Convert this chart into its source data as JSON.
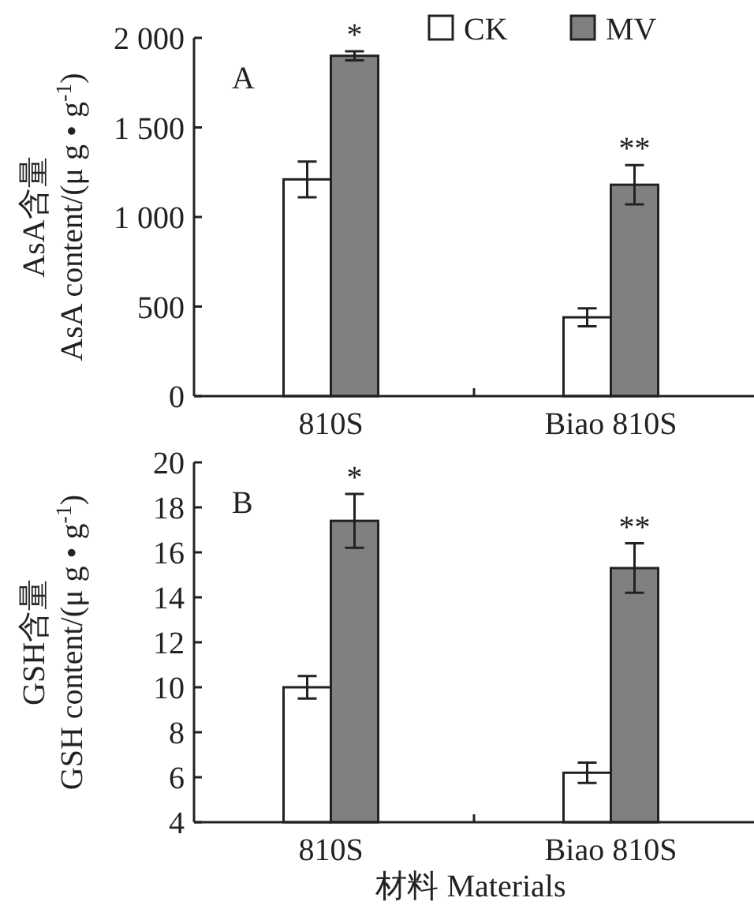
{
  "chart_data": [
    {
      "type": "bar",
      "ylabel": "AsA含量\nAsA content/(μ g • g$^{-1}$)",
      "categories": [
        "810S",
        "Biao 810S"
      ],
      "series": [
        {
          "name": "CK",
          "color": "#ffffff",
          "values": [
            1210,
            440
          ],
          "errors": [
            100,
            50
          ]
        },
        {
          "name": "MV",
          "color": "#808080",
          "values": [
            1900,
            1180
          ],
          "errors": [
            25,
            110
          ]
        }
      ],
      "ylim": [
        0,
        2000
      ],
      "yticks": [
        {
          "value": 0,
          "label": "0"
        },
        {
          "value": 500,
          "label": "500"
        },
        {
          "value": 1000,
          "label": "1 000"
        },
        {
          "value": 1500,
          "label": "1 500"
        },
        {
          "value": 2000,
          "label": "2 000"
        }
      ],
      "legend": "top",
      "grid": false,
      "annotations": [
        "A",
        "*",
        "**"
      ]
    },
    {
      "type": "bar",
      "ylabel": "GSH含量\nGSH content/(μ g • g$^{-1}$)",
      "xlabel": "材料 Materials",
      "categories": [
        "810S",
        "Biao 810S"
      ],
      "series": [
        {
          "color": "#ffffff",
          "values": [
            10,
            6.2
          ],
          "errors": [
            0.5,
            0.45
          ]
        },
        {
          "color": "#808080",
          "values": [
            17.4,
            15.3
          ],
          "errors": [
            1.2,
            1.1
          ]
        }
      ],
      "ylim": [
        4,
        20
      ],
      "yticks": [
        4,
        6,
        8,
        10,
        12,
        14,
        16,
        18,
        20
      ],
      "legend": false,
      "grid": false,
      "annotations": [
        "B",
        "*",
        "**"
      ]
    }
  ]
}
